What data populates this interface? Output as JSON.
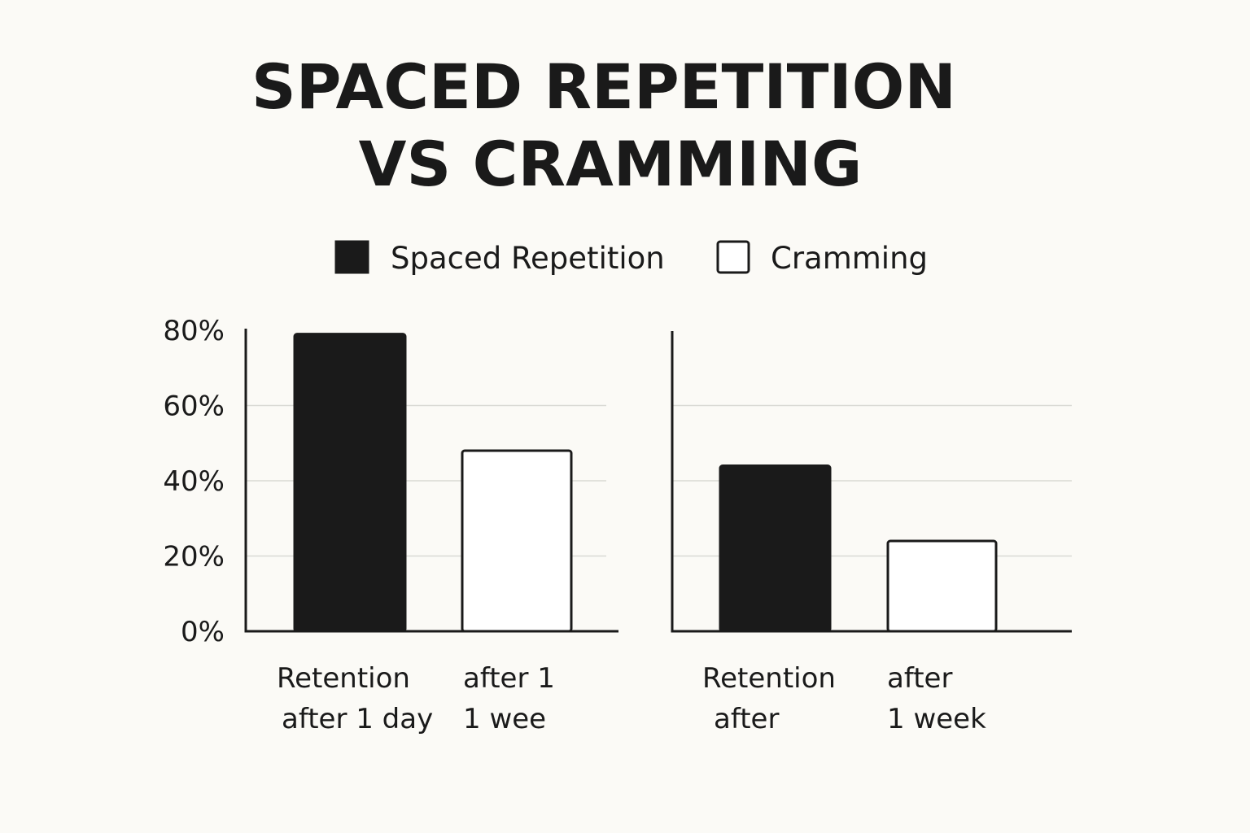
{
  "chart_data": {
    "type": "bar",
    "title": [
      "SPACED REPETITION",
      "VS CRAMMING"
    ],
    "legend": [
      {
        "name": "Spaced Repetition",
        "color": "#1a1a1a"
      },
      {
        "name": "Cramming",
        "color": "#ffffff"
      }
    ],
    "ylim": [
      0,
      80
    ],
    "yticks": [
      "0%",
      "20%",
      "40%",
      "60%",
      "80%"
    ],
    "ytick_values": [
      0,
      20,
      40,
      60,
      80
    ],
    "panels": [
      {
        "name": "left",
        "bars": [
          {
            "series": "Spaced Repetition",
            "value": 79,
            "label": [
              "Retention",
              "after 1 day"
            ]
          },
          {
            "series": "Cramming",
            "value": 48,
            "label": [
              "after 1",
              "1 wee"
            ]
          }
        ]
      },
      {
        "name": "right",
        "bars": [
          {
            "series": "Spaced Repetition",
            "value": 44,
            "label": [
              "Retention",
              "after"
            ]
          },
          {
            "series": "Cramming",
            "value": 24,
            "label": [
              "after",
              "1 week"
            ]
          }
        ]
      }
    ]
  }
}
